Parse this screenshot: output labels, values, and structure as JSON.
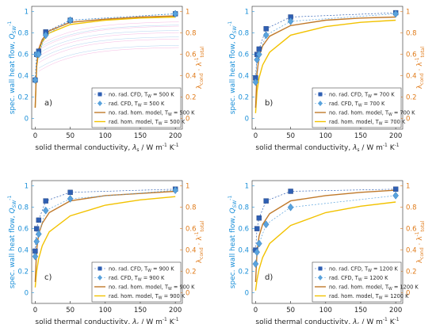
{
  "figure": {
    "ylabel_left_prefix": "spec. wall heat flow, ",
    "ylabel_left_symbol": "Q",
    "ylabel_left_sub": "SW",
    "ylabel_left_sup": "-1",
    "ylabel_right_main": "λ",
    "ylabel_right_sub1": "cond",
    "ylabel_right_sep": " · λ",
    "ylabel_right_sup": "-1",
    "ylabel_right_sub2": "total",
    "xlabel_main": "solid thermal conductivity, ",
    "xlabel_symbol": "λ",
    "xlabel_sub": "s",
    "xlabel_unit": " / W m",
    "xlabel_sup1": "-1",
    "xlabel_unit2": " K",
    "xlabel_sup2": "-1",
    "tw_prefix": ", T",
    "tw_sub": "W",
    "left_tick_labels": [
      "0",
      "0.2",
      "0.4",
      "0.6",
      "0.8",
      "1"
    ],
    "right_tick_labels": [
      "0",
      "0.2",
      "0.4",
      "0.6",
      "0.8",
      "1"
    ],
    "x_tick_labels": [
      "0",
      "50",
      "100",
      "150",
      "200"
    ],
    "colors": {
      "axis_left": "#1a8fd8",
      "axis_right": "#e07b1a",
      "marker_square": "#2f5fb3",
      "marker_diamond": "#5aa3dd",
      "line_norad": "#c0792a",
      "line_rad": "#f2c200",
      "noise_pink": "#f08cd0",
      "noise_blue": "#7fb8e6"
    },
    "legend_names": {
      "norad_cfd": "no. rad. CFD",
      "rad_cfd": "rad. CFD",
      "norad_model": "no. rad. hom. model",
      "rad_model": "rad. hom. model"
    }
  },
  "chart_data": [
    {
      "type": "line",
      "panel_label": "a)",
      "temperature": "500 K",
      "legend_tw": " = 500 K",
      "legend_position": "bottom-right",
      "xlim": [
        -5,
        210
      ],
      "ylim": [
        -0.1,
        1.05
      ],
      "series": [
        {
          "name": "no. rad. CFD",
          "marker": "square",
          "x": [
            0,
            2,
            5,
            15,
            50,
            200
          ],
          "y": [
            0.36,
            0.6,
            0.63,
            0.81,
            0.92,
            0.98
          ]
        },
        {
          "name": "rad. CFD",
          "marker": "diamond",
          "x": [
            0,
            2,
            5,
            15,
            50,
            200
          ],
          "y": [
            0.36,
            0.6,
            0.6,
            0.78,
            0.92,
            0.98
          ]
        },
        {
          "name": "no. rad. hom. model",
          "x": [
            0,
            2,
            5,
            10,
            20,
            50,
            100,
            150,
            200
          ],
          "y": [
            0.1,
            0.5,
            0.65,
            0.74,
            0.82,
            0.9,
            0.93,
            0.95,
            0.96
          ]
        },
        {
          "name": "rad. hom. model",
          "x": [
            0,
            2,
            5,
            10,
            20,
            50,
            100,
            150,
            200
          ],
          "y": [
            0.1,
            0.48,
            0.63,
            0.72,
            0.8,
            0.88,
            0.92,
            0.94,
            0.95
          ]
        }
      ]
    },
    {
      "type": "line",
      "panel_label": "b)",
      "temperature": "700 K",
      "legend_tw": " = 700 K",
      "legend_position": "bottom-right",
      "xlim": [
        -5,
        210
      ],
      "ylim": [
        -0.1,
        1.05
      ],
      "series": [
        {
          "name": "no. rad. CFD",
          "marker": "square",
          "x": [
            0,
            2,
            5,
            15,
            50,
            200
          ],
          "y": [
            0.38,
            0.6,
            0.65,
            0.84,
            0.95,
            0.99
          ]
        },
        {
          "name": "rad. CFD",
          "marker": "diamond",
          "x": [
            0,
            2,
            5,
            15,
            50,
            200
          ],
          "y": [
            0.34,
            0.55,
            0.6,
            0.78,
            0.91,
            0.98
          ]
        },
        {
          "name": "no. rad. hom. model",
          "x": [
            0,
            2,
            5,
            10,
            20,
            50,
            100,
            150,
            200
          ],
          "y": [
            0.1,
            0.42,
            0.58,
            0.68,
            0.77,
            0.87,
            0.92,
            0.94,
            0.95
          ]
        },
        {
          "name": "rad. hom. model",
          "x": [
            0,
            2,
            5,
            10,
            20,
            50,
            100,
            150,
            200
          ],
          "y": [
            0.05,
            0.25,
            0.38,
            0.5,
            0.62,
            0.78,
            0.86,
            0.9,
            0.92
          ]
        }
      ]
    },
    {
      "type": "line",
      "panel_label": "c)",
      "temperature": "900 K",
      "legend_tw": " = 900 K",
      "legend_position": "bottom-right",
      "xlim": [
        -5,
        210
      ],
      "ylim": [
        -0.1,
        1.05
      ],
      "series": [
        {
          "name": "no. rad. CFD",
          "marker": "square",
          "x": [
            0,
            2,
            5,
            15,
            50,
            200
          ],
          "y": [
            0.39,
            0.6,
            0.68,
            0.86,
            0.94,
            0.97
          ]
        },
        {
          "name": "rad. CFD",
          "marker": "diamond",
          "x": [
            0,
            2,
            5,
            15,
            50,
            200
          ],
          "y": [
            0.34,
            0.48,
            0.55,
            0.77,
            0.88,
            0.96
          ]
        },
        {
          "name": "no. rad. hom. model",
          "x": [
            0,
            2,
            5,
            10,
            20,
            50,
            100,
            150,
            200
          ],
          "y": [
            0.1,
            0.4,
            0.55,
            0.65,
            0.75,
            0.86,
            0.91,
            0.93,
            0.95
          ]
        },
        {
          "name": "rad. hom. model",
          "x": [
            0,
            2,
            5,
            10,
            20,
            50,
            100,
            150,
            200
          ],
          "y": [
            0.05,
            0.2,
            0.32,
            0.44,
            0.57,
            0.72,
            0.82,
            0.87,
            0.9
          ]
        }
      ]
    },
    {
      "type": "line",
      "panel_label": "d)",
      "temperature": "1200 K",
      "legend_tw": " = 1200 K",
      "legend_position": "bottom-right",
      "xlim": [
        -5,
        210
      ],
      "ylim": [
        -0.1,
        1.05
      ],
      "series": [
        {
          "name": "no. rad. CFD",
          "marker": "square",
          "x": [
            0,
            2,
            5,
            15,
            50,
            200
          ],
          "y": [
            0.4,
            0.6,
            0.7,
            0.86,
            0.95,
            0.97
          ]
        },
        {
          "name": "rad. CFD",
          "marker": "diamond",
          "x": [
            0,
            2,
            5,
            15,
            50,
            200
          ],
          "y": [
            0.27,
            0.38,
            0.46,
            0.64,
            0.8,
            0.91
          ]
        },
        {
          "name": "no. rad. hom. model",
          "x": [
            0,
            2,
            5,
            10,
            20,
            50,
            100,
            150,
            200
          ],
          "y": [
            0.1,
            0.38,
            0.53,
            0.64,
            0.74,
            0.86,
            0.91,
            0.94,
            0.96
          ]
        },
        {
          "name": "rad. hom. model",
          "x": [
            0,
            2,
            5,
            10,
            20,
            50,
            100,
            150,
            200
          ],
          "y": [
            0.02,
            0.12,
            0.22,
            0.33,
            0.46,
            0.63,
            0.75,
            0.81,
            0.85
          ]
        }
      ]
    }
  ]
}
